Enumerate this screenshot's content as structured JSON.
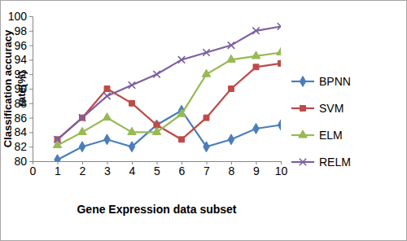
{
  "chart_data": {
    "type": "line",
    "x_label": "Gene Expression data subset",
    "y_label": "Classification accuracy rate(%)",
    "x": [
      1,
      2,
      3,
      4,
      5,
      6,
      7,
      8,
      9,
      10
    ],
    "xlim": [
      0,
      10
    ],
    "xticks": [
      0,
      1,
      2,
      3,
      4,
      5,
      6,
      7,
      8,
      9,
      10
    ],
    "ylim": [
      80,
      100
    ],
    "yticks": [
      80,
      82,
      84,
      86,
      88,
      90,
      92,
      94,
      96,
      98,
      100
    ],
    "grid": false,
    "legend": "right",
    "series": [
      {
        "name": "BPNN",
        "color": "#4a7ebb",
        "marker": "diamond",
        "line_style": "solid",
        "values": [
          80.2,
          82,
          83,
          82,
          85,
          87,
          82,
          83,
          84.5,
          85
        ]
      },
      {
        "name": "SVM",
        "color": "#be4b48",
        "marker": "square",
        "line_style": "solid",
        "values": [
          83,
          86,
          90,
          88,
          85,
          83,
          86,
          90,
          93,
          93.5
        ]
      },
      {
        "name": "ELM",
        "color": "#98b954",
        "marker": "triangle",
        "line_style": "solid",
        "values": [
          82.2,
          84,
          86,
          84,
          84,
          86.5,
          92,
          94,
          94.5,
          95
        ]
      },
      {
        "name": "RELM",
        "color": "#7d60a0",
        "marker": "x",
        "line_style": "solid",
        "values": [
          83,
          86,
          89,
          90.5,
          92,
          94,
          95,
          96,
          98,
          98.6
        ]
      }
    ]
  }
}
